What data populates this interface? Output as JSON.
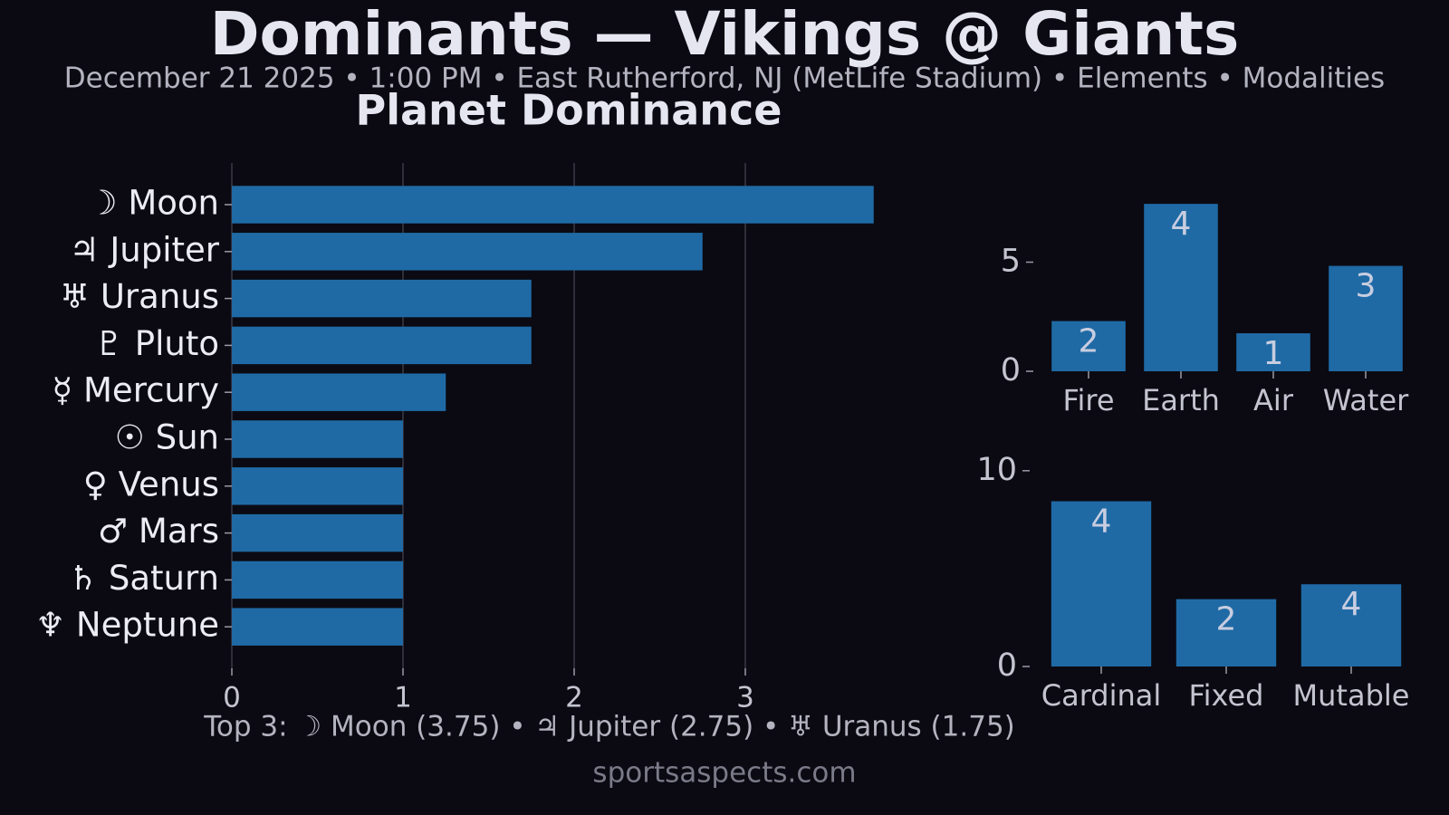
{
  "title": "Dominants — Vikings @ Giants",
  "subtitle": "December 21 2025 • 1:00 PM • East Rutherford, NJ (MetLife Stadium) • Elements • Modalities",
  "summary": "Top 3: ☽ Moon (3.75) • ♃ Jupiter (2.75) • ♅ Uranus (1.75)",
  "footer": "sportsaspects.com",
  "chart_data": [
    {
      "type": "hbar",
      "title": "Planet Dominance",
      "categories": [
        "☽ Moon",
        "♃ Jupiter",
        "♅ Uranus",
        "♇ Pluto",
        "☿ Mercury",
        "☉ Sun",
        "♀ Venus",
        "♂ Mars",
        "♄ Saturn",
        "♆ Neptune"
      ],
      "values": [
        3.75,
        2.75,
        1.75,
        1.75,
        1.25,
        1,
        1,
        1,
        1,
        1
      ],
      "color": "#1f6aa5",
      "xlim": [
        0,
        3.94
      ],
      "xticks": [
        0,
        1,
        2,
        3
      ],
      "grid": true
    },
    {
      "type": "bar",
      "categories": [
        "Fire",
        "Earth",
        "Air",
        "Water"
      ],
      "values": [
        2.3,
        7.67,
        1.74,
        4.83
      ],
      "counts": [
        2,
        4,
        1,
        3
      ],
      "color": "#1f6aa5",
      "ylim": [
        0,
        8.05
      ],
      "yticks": [
        0,
        5
      ],
      "grid": false
    },
    {
      "type": "bar",
      "categories": [
        "Cardinal",
        "Fixed",
        "Mutable"
      ],
      "values": [
        8.44,
        3.44,
        4.2
      ],
      "counts": [
        4,
        2,
        4
      ],
      "color": "#1f6aa5",
      "ylim": [
        0,
        10.5
      ],
      "yticks": [
        0,
        10
      ],
      "grid": false
    }
  ]
}
